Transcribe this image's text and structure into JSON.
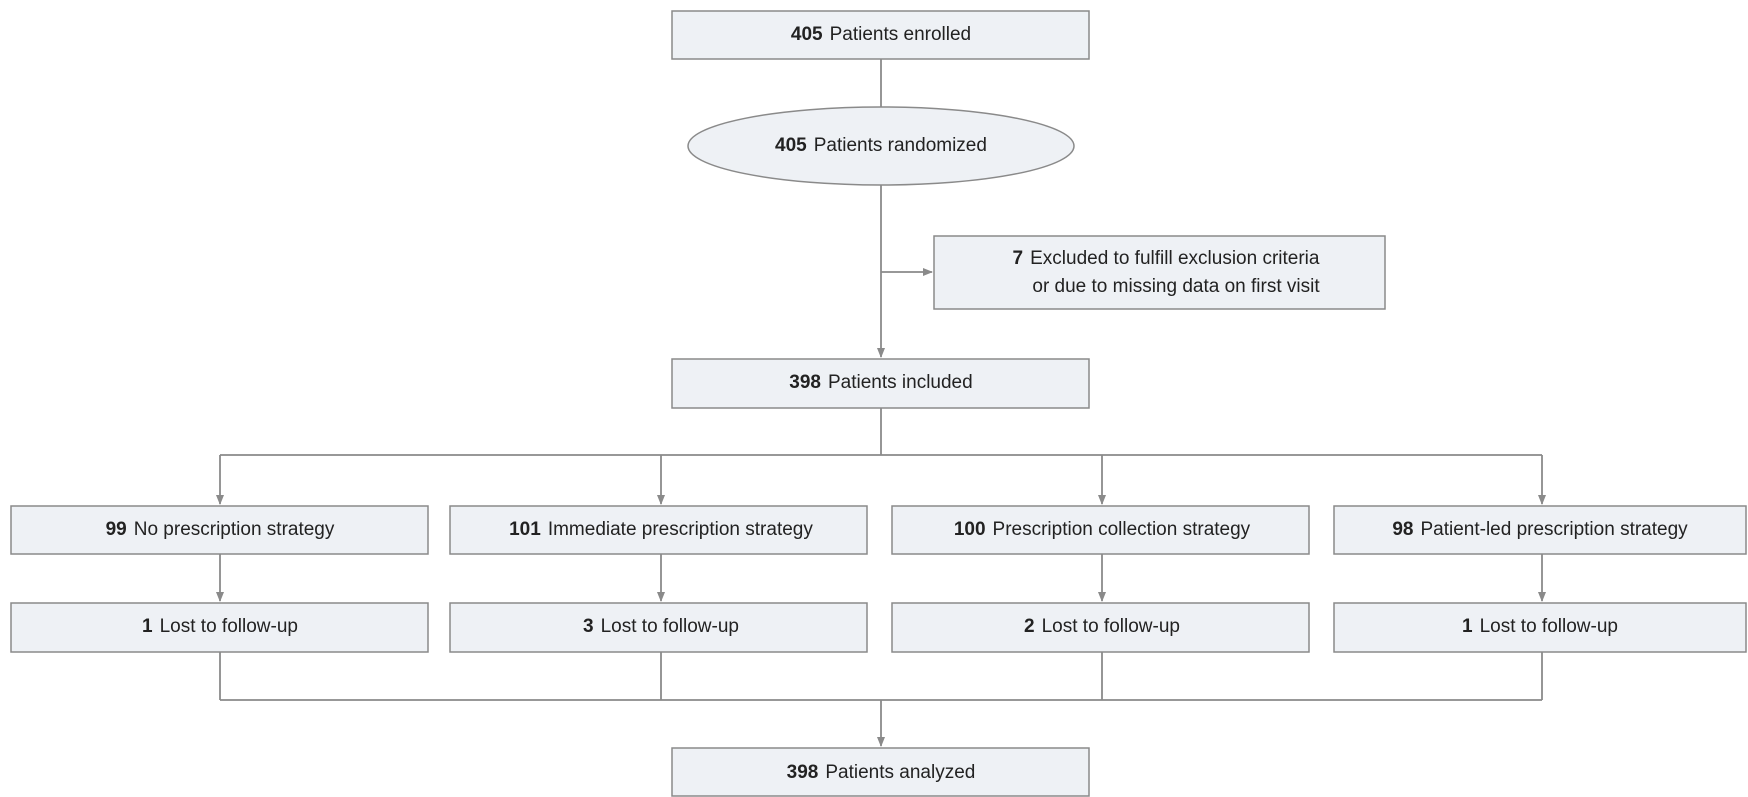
{
  "nodes": [
    {
      "count": 405,
      "label": "Patients enrolled"
    },
    {
      "count": 405,
      "label": "Patients randomized"
    },
    {
      "count": 7,
      "lines": [
        "Excluded to fulfill exclusion criteria",
        "or due to missing data on first visit"
      ]
    },
    {
      "count": 398,
      "label": "Patients included"
    },
    {
      "count": 99,
      "label": "No prescription strategy"
    },
    {
      "count": 101,
      "label": "Immediate prescription strategy"
    },
    {
      "count": 100,
      "label": "Prescription collection strategy"
    },
    {
      "count": 98,
      "label": "Patient-led prescription strategy"
    },
    {
      "count": 1,
      "label": "Lost to follow-up"
    },
    {
      "count": 3,
      "label": "Lost to follow-up"
    },
    {
      "count": 2,
      "label": "Lost to follow-up"
    },
    {
      "count": 1,
      "label": "Lost to follow-up"
    },
    {
      "count": 398,
      "label": "Patients analyzed"
    }
  ]
}
